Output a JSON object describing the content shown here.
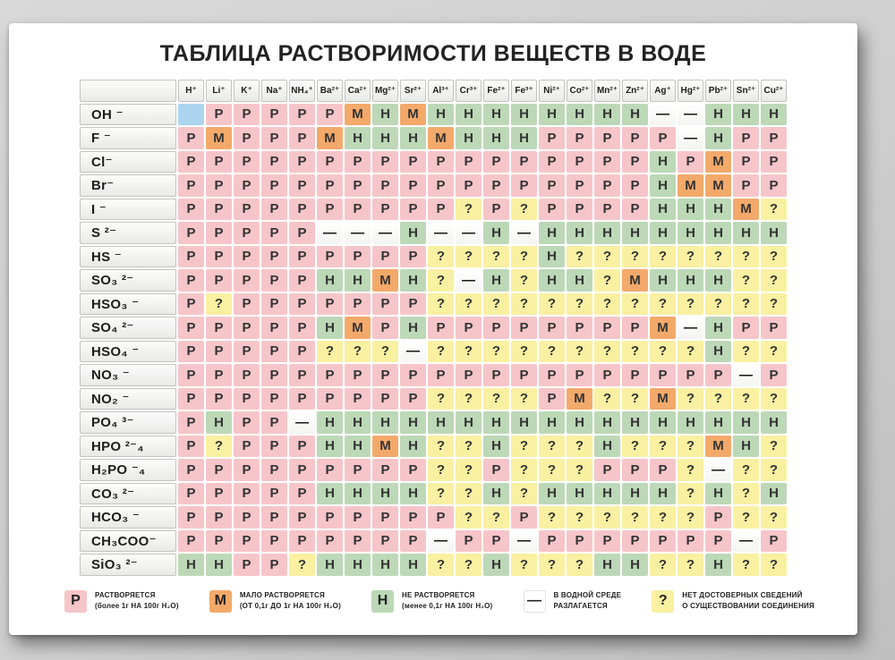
{
  "title": "ТАБЛИЦА РАСТВОРИМОСТИ ВЕЩЕСТВ В ВОДЕ",
  "chart_data": {
    "type": "table",
    "columns": [
      "H⁺",
      "Li⁺",
      "K⁺",
      "Na⁺",
      "NH₄⁺",
      "Ba²⁺",
      "Ca²⁺",
      "Mg²⁺",
      "Sr²⁺",
      "Al³⁺",
      "Cr³⁺",
      "Fe²⁺",
      "Fe³⁺",
      "Ni²⁺",
      "Co²⁺",
      "Mn²⁺",
      "Zn²⁺",
      "Ag⁺",
      "Hg²⁺",
      "Pb²⁺",
      "Sn²⁺",
      "Cu²⁺"
    ],
    "rows": [
      {
        "label": "OH ⁻",
        "values": [
          "",
          "Р",
          "Р",
          "Р",
          "Р",
          "Р",
          "М",
          "Н",
          "М",
          "Н",
          "Н",
          "Н",
          "Н",
          "Н",
          "Н",
          "Н",
          "Н",
          "—",
          "—",
          "Н",
          "Н",
          "Н"
        ]
      },
      {
        "label": "F ⁻",
        "values": [
          "Р",
          "М",
          "Р",
          "Р",
          "Р",
          "М",
          "Н",
          "Н",
          "Н",
          "М",
          "Н",
          "Н",
          "Н",
          "Р",
          "Р",
          "Р",
          "Р",
          "Р",
          "—",
          "Н",
          "Р",
          "Р"
        ]
      },
      {
        "label": "Cl⁻",
        "values": [
          "Р",
          "Р",
          "Р",
          "Р",
          "Р",
          "Р",
          "Р",
          "Р",
          "Р",
          "Р",
          "Р",
          "Р",
          "Р",
          "Р",
          "Р",
          "Р",
          "Р",
          "Н",
          "Р",
          "М",
          "Р",
          "Р"
        ]
      },
      {
        "label": "Br⁻",
        "values": [
          "Р",
          "Р",
          "Р",
          "Р",
          "Р",
          "Р",
          "Р",
          "Р",
          "Р",
          "Р",
          "Р",
          "Р",
          "Р",
          "Р",
          "Р",
          "Р",
          "Р",
          "Н",
          "М",
          "М",
          "Р",
          "Р"
        ]
      },
      {
        "label": "I ⁻",
        "values": [
          "Р",
          "Р",
          "Р",
          "Р",
          "Р",
          "Р",
          "Р",
          "Р",
          "Р",
          "Р",
          "?",
          "Р",
          "?",
          "Р",
          "Р",
          "Р",
          "Р",
          "Н",
          "Н",
          "Н",
          "М",
          "?"
        ]
      },
      {
        "label": "S ²⁻",
        "values": [
          "Р",
          "Р",
          "Р",
          "Р",
          "Р",
          "—",
          "—",
          "—",
          "Н",
          "—",
          "—",
          "Н",
          "—",
          "Н",
          "Н",
          "Н",
          "Н",
          "Н",
          "Н",
          "Н",
          "Н",
          "Н"
        ]
      },
      {
        "label": "HS ⁻",
        "values": [
          "Р",
          "Р",
          "Р",
          "Р",
          "Р",
          "Р",
          "Р",
          "Р",
          "Р",
          "?",
          "?",
          "?",
          "?",
          "Н",
          "?",
          "?",
          "?",
          "?",
          "?",
          "?",
          "?",
          "?"
        ]
      },
      {
        "label": "SO₃ ²⁻",
        "values": [
          "Р",
          "Р",
          "Р",
          "Р",
          "Р",
          "Н",
          "Н",
          "М",
          "Н",
          "?",
          "—",
          "Н",
          "?",
          "Н",
          "Н",
          "?",
          "М",
          "Н",
          "Н",
          "Н",
          "?",
          "?"
        ]
      },
      {
        "label": "HSO₃ ⁻",
        "values": [
          "Р",
          "?",
          "Р",
          "Р",
          "Р",
          "Р",
          "Р",
          "Р",
          "Р",
          "?",
          "?",
          "?",
          "?",
          "?",
          "?",
          "?",
          "?",
          "?",
          "?",
          "?",
          "?",
          "?"
        ]
      },
      {
        "label": "SO₄ ²⁻",
        "values": [
          "Р",
          "Р",
          "Р",
          "Р",
          "Р",
          "Н",
          "М",
          "Р",
          "Н",
          "Р",
          "Р",
          "Р",
          "Р",
          "Р",
          "Р",
          "Р",
          "Р",
          "М",
          "—",
          "Н",
          "Р",
          "Р"
        ]
      },
      {
        "label": "HSO₄ ⁻",
        "values": [
          "Р",
          "Р",
          "Р",
          "Р",
          "Р",
          "?",
          "?",
          "?",
          "—",
          "?",
          "?",
          "?",
          "?",
          "?",
          "?",
          "?",
          "?",
          "?",
          "?",
          "Н",
          "?",
          "?"
        ]
      },
      {
        "label": "NO₃ ⁻",
        "values": [
          "Р",
          "Р",
          "Р",
          "Р",
          "Р",
          "Р",
          "Р",
          "Р",
          "Р",
          "Р",
          "Р",
          "Р",
          "Р",
          "Р",
          "Р",
          "Р",
          "Р",
          "Р",
          "Р",
          "Р",
          "—",
          "Р"
        ]
      },
      {
        "label": "NO₂ ⁻",
        "values": [
          "Р",
          "Р",
          "Р",
          "Р",
          "Р",
          "Р",
          "Р",
          "Р",
          "Р",
          "?",
          "?",
          "?",
          "?",
          "Р",
          "М",
          "?",
          "?",
          "М",
          "?",
          "?",
          "?",
          "?"
        ]
      },
      {
        "label": "PO₄ ³⁻",
        "values": [
          "Р",
          "Н",
          "Р",
          "Р",
          "—",
          "Н",
          "Н",
          "Н",
          "Н",
          "Н",
          "Н",
          "Н",
          "Н",
          "Н",
          "Н",
          "Н",
          "Н",
          "Н",
          "Н",
          "Н",
          "Н",
          "Н"
        ]
      },
      {
        "label": "HPO ²⁻₄",
        "values": [
          "Р",
          "?",
          "Р",
          "Р",
          "Р",
          "Н",
          "Н",
          "М",
          "Н",
          "?",
          "?",
          "Н",
          "?",
          "?",
          "?",
          "Н",
          "?",
          "?",
          "?",
          "М",
          "Н",
          "?"
        ]
      },
      {
        "label": "H₂PO ⁻₄",
        "values": [
          "Р",
          "Р",
          "Р",
          "Р",
          "Р",
          "Р",
          "Р",
          "Р",
          "Р",
          "?",
          "?",
          "Р",
          "?",
          "?",
          "?",
          "Р",
          "Р",
          "Р",
          "?",
          "—",
          "?",
          "?"
        ]
      },
      {
        "label": "CO₃ ²⁻",
        "values": [
          "Р",
          "Р",
          "Р",
          "Р",
          "Р",
          "Н",
          "Н",
          "Н",
          "Н",
          "?",
          "?",
          "Н",
          "?",
          "Н",
          "Н",
          "Н",
          "Н",
          "Н",
          "?",
          "Н",
          "?",
          "Н"
        ]
      },
      {
        "label": "HCO₃ ⁻",
        "values": [
          "Р",
          "Р",
          "Р",
          "Р",
          "Р",
          "Р",
          "Р",
          "Р",
          "Р",
          "Р",
          "?",
          "?",
          "Р",
          "?",
          "?",
          "?",
          "?",
          "?",
          "?",
          "Р",
          "?",
          "?"
        ]
      },
      {
        "label": "CH₃COO⁻",
        "values": [
          "Р",
          "Р",
          "Р",
          "Р",
          "Р",
          "Р",
          "Р",
          "Р",
          "Р",
          "—",
          "Р",
          "Р",
          "—",
          "Р",
          "Р",
          "Р",
          "Р",
          "Р",
          "Р",
          "Р",
          "—",
          "Р"
        ]
      },
      {
        "label": "SiO₃ ²⁻",
        "values": [
          "Н",
          "Н",
          "Р",
          "Р",
          "?",
          "Н",
          "Н",
          "Н",
          "Н",
          "?",
          "?",
          "Н",
          "?",
          "?",
          "?",
          "Н",
          "Н",
          "?",
          "?",
          "Н",
          "?",
          "?"
        ]
      }
    ],
    "code_colors": {
      "Р": "#f6c5c9",
      "М": "#f3a96a",
      "Н": "#bcd8b7",
      "?": "#f9f0a1",
      "—": "#ffffff",
      "": "#abd5ef"
    }
  },
  "legend": {
    "items": [
      {
        "symbol": "Р",
        "color": "#f6c5c9",
        "line1": "РАСТВОРЯЕТСЯ",
        "line2": "(более 1г НА 100г Н₂О)"
      },
      {
        "symbol": "М",
        "color": "#f3a96a",
        "line1": "МАЛО РАСТВОРЯЕТСЯ",
        "line2": "(ОТ 0,1г ДО 1г НА 100г Н₂О)"
      },
      {
        "symbol": "Н",
        "color": "#bcd8b7",
        "line1": "НЕ РАСТВОРЯЕТСЯ",
        "line2": "(менее 0,1г  НА 100г Н₂О)"
      },
      {
        "symbol": "—",
        "color": "#ffffff",
        "line1": "В ВОДНОЙ СРЕДЕ",
        "line2": "РАЗЛАГАЕТСЯ"
      },
      {
        "symbol": "?",
        "color": "#f9f0a1",
        "line1": "НЕТ ДОСТОВЕРНЫХ СВЕДЕНИЙ",
        "line2": "О СУЩЕСТВОВАНИИ СОЕДИНЕНИЯ"
      }
    ]
  }
}
